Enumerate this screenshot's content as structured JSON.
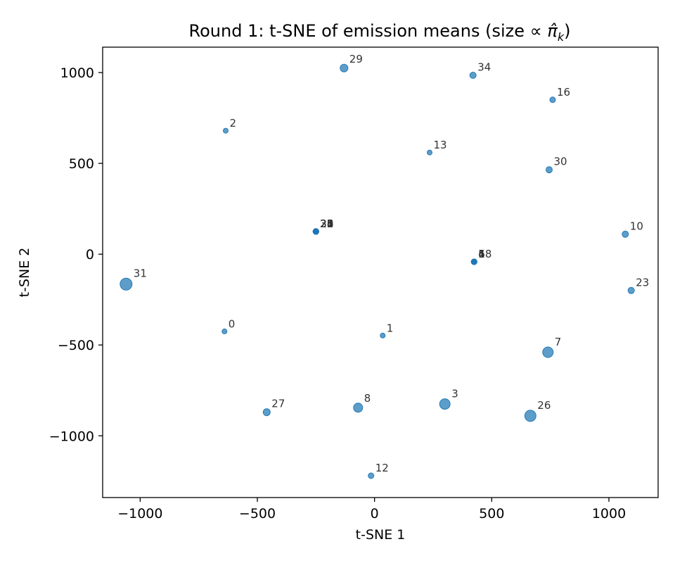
{
  "chart_data": {
    "type": "scatter",
    "title": "Round 1: t-SNE of emission means (size ∝ π̂_k)",
    "title_parts": {
      "prefix": "Round 1: t-SNE of emission means (size ∝ ",
      "pi": "π̂",
      "sub": "k",
      "suffix": ")"
    },
    "xlabel": "t-SNE 1",
    "ylabel": "t-SNE 2",
    "xlim": [
      -1160,
      1210
    ],
    "ylim": [
      -1340,
      1140
    ],
    "xticks": [
      -1000,
      -500,
      0,
      500,
      1000
    ],
    "yticks": [
      -1000,
      -500,
      0,
      500,
      1000
    ],
    "xtick_labels": [
      "−1000",
      "−500",
      "0",
      "500",
      "1000"
    ],
    "ytick_labels": [
      "−1000",
      "−500",
      "0",
      "500",
      "1000"
    ],
    "grid": false,
    "marker_color": "#1f77b4",
    "points": [
      {
        "label": "0",
        "x": -640,
        "y": -425,
        "size": 3.5
      },
      {
        "label": "1",
        "x": 35,
        "y": -448,
        "size": 3.5
      },
      {
        "label": "2",
        "x": -635,
        "y": 680,
        "size": 3.5
      },
      {
        "label": "3",
        "x": 300,
        "y": -825,
        "size": 7.5
      },
      {
        "label": "4",
        "x": 425,
        "y": -42,
        "size": 4
      },
      {
        "label": "5",
        "x": 425,
        "y": -42,
        "size": 4
      },
      {
        "label": "6",
        "x": 425,
        "y": -42,
        "size": 4
      },
      {
        "label": "7",
        "x": 740,
        "y": -540,
        "size": 7.5
      },
      {
        "label": "8",
        "x": -70,
        "y": -845,
        "size": 6.5
      },
      {
        "label": "10",
        "x": 1070,
        "y": 110,
        "size": 4.5
      },
      {
        "label": "12",
        "x": -15,
        "y": -1220,
        "size": 4
      },
      {
        "label": "13",
        "x": 235,
        "y": 560,
        "size": 3.5
      },
      {
        "label": "16",
        "x": 760,
        "y": 850,
        "size": 4
      },
      {
        "label": "18",
        "x": 425,
        "y": -42,
        "size": 4
      },
      {
        "label": "23",
        "x": 1095,
        "y": -200,
        "size": 4.5
      },
      {
        "label": "26",
        "x": 665,
        "y": -890,
        "size": 8
      },
      {
        "label": "27",
        "x": -460,
        "y": -870,
        "size": 5
      },
      {
        "label": "29",
        "x": -130,
        "y": 1025,
        "size": 5.5
      },
      {
        "label": "30",
        "x": 745,
        "y": 465,
        "size": 4.5
      },
      {
        "label": "31",
        "x": -1060,
        "y": -165,
        "size": 8.5
      },
      {
        "label": "34",
        "x": 420,
        "y": 985,
        "size": 4.5
      },
      {
        "label": "20",
        "x": -250,
        "y": 125,
        "size": 4
      },
      {
        "label": "21",
        "x": -250,
        "y": 125,
        "size": 4
      },
      {
        "label": "22",
        "x": -250,
        "y": 125,
        "size": 4
      },
      {
        "label": "24",
        "x": -250,
        "y": 125,
        "size": 4
      },
      {
        "label": "25",
        "x": -250,
        "y": 125,
        "size": 4
      },
      {
        "label": "28",
        "x": -250,
        "y": 125,
        "size": 4
      },
      {
        "label": "32",
        "x": -250,
        "y": 125,
        "size": 4
      },
      {
        "label": "33",
        "x": -250,
        "y": 125,
        "size": 4
      }
    ]
  }
}
